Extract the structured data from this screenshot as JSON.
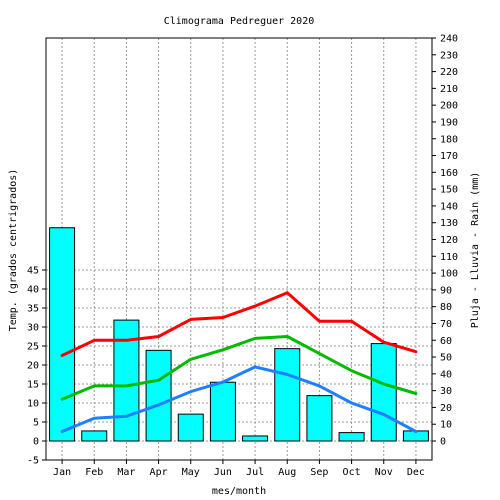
{
  "chart_data": {
    "type": "bar+line",
    "title": "Climograma Pedreguer 2020",
    "xlabel": "mes/month",
    "ylabel_left": "Temp. (grados centrigrados)",
    "ylabel_right": "Pluja - Lluvia - Rain (mm)",
    "categories": [
      "Jan",
      "Feb",
      "Mar",
      "Apr",
      "May",
      "Jun",
      "Jul",
      "Aug",
      "Sep",
      "Oct",
      "Nov",
      "Dec"
    ],
    "left_axis": {
      "range": [
        -5,
        45
      ],
      "ticks": [
        -5,
        0,
        5,
        10,
        15,
        20,
        25,
        30,
        35,
        40,
        45
      ]
    },
    "right_axis": {
      "range": [
        0,
        240
      ],
      "ticks": [
        0,
        10,
        20,
        30,
        40,
        50,
        60,
        70,
        80,
        90,
        100,
        110,
        120,
        130,
        140,
        150,
        160,
        170,
        180,
        190,
        200,
        210,
        220,
        230,
        240
      ]
    },
    "grid": true,
    "bars": {
      "axis": "right",
      "color": "#00ffff",
      "values": [
        127,
        6,
        72,
        54,
        16,
        35,
        3,
        55,
        27,
        5,
        58,
        6
      ]
    },
    "series": [
      {
        "axis": "left",
        "color": "#ff0000",
        "values": [
          22.5,
          26.5,
          26.5,
          27.5,
          32.0,
          32.5,
          35.5,
          39.0,
          31.5,
          31.5,
          26.0,
          23.5
        ]
      },
      {
        "axis": "left",
        "color": "#00bb00",
        "values": [
          11.0,
          14.5,
          14.5,
          16.0,
          21.5,
          24.0,
          27.0,
          27.5,
          23.0,
          18.5,
          15.0,
          12.5
        ]
      },
      {
        "axis": "left",
        "color": "#1e7fff",
        "values": [
          2.5,
          6.0,
          6.5,
          9.5,
          13.0,
          15.5,
          19.5,
          17.5,
          14.5,
          10.0,
          7.0,
          2.5
        ]
      }
    ]
  }
}
